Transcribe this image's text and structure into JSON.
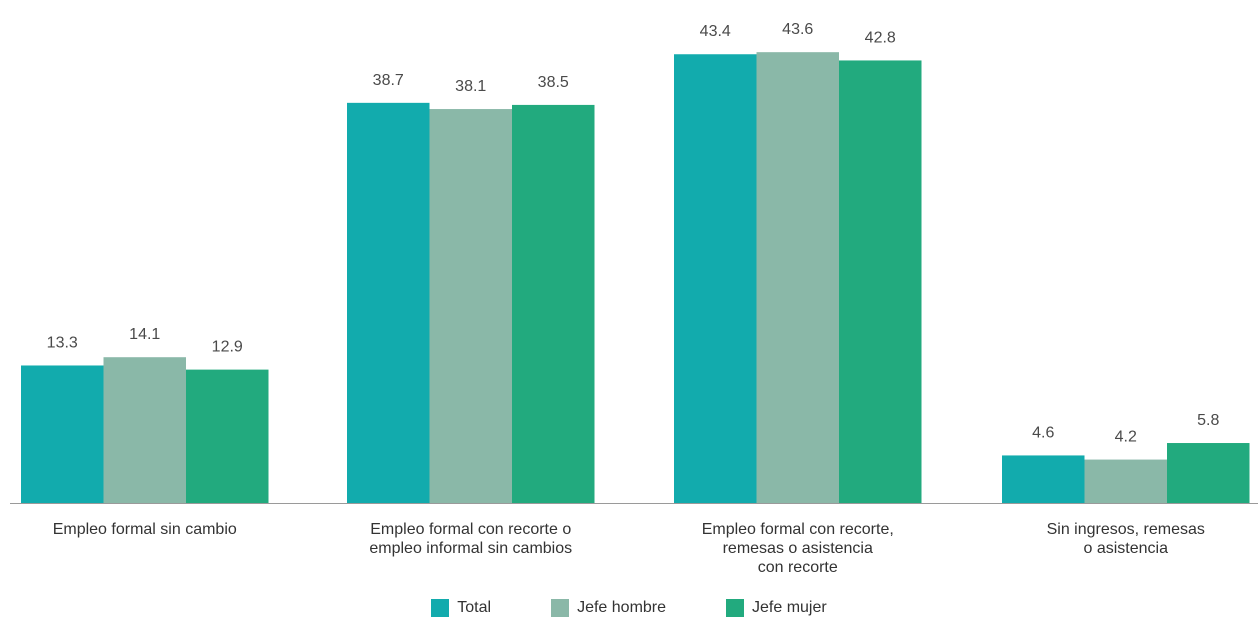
{
  "chart_data": {
    "type": "bar",
    "categories": [
      [
        "Empleo formal sin cambio"
      ],
      [
        "Empleo formal con recorte o",
        "empleo informal sin cambios"
      ],
      [
        "Empleo formal con recorte,",
        "remesas o asistencia",
        "con recorte"
      ],
      [
        "Sin ingresos, remesas",
        "o asistencia"
      ]
    ],
    "series": [
      {
        "name": "Total",
        "color": "#12abad",
        "values": [
          13.3,
          38.7,
          43.4,
          4.6
        ]
      },
      {
        "name": "Jefe hombre",
        "color": "#8ab8a8",
        "values": [
          14.1,
          38.1,
          43.6,
          4.2
        ]
      },
      {
        "name": "Jefe mujer",
        "color": "#22aa7e",
        "values": [
          12.9,
          38.5,
          42.8,
          5.8
        ]
      }
    ],
    "ylim": [
      0,
      45
    ],
    "grid": false,
    "legend_position": "bottom-center"
  }
}
